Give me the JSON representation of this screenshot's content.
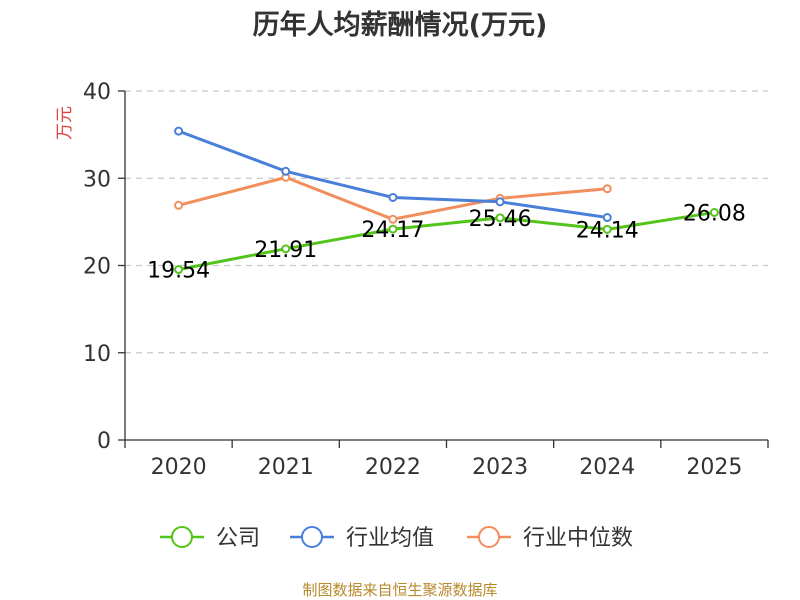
{
  "chart_data": {
    "type": "line",
    "title": "历年人均薪酬情况(万元)",
    "ylabel": "万元",
    "xlabel": "",
    "ylim": [
      0,
      40
    ],
    "yticks": [
      0,
      10,
      20,
      30,
      40
    ],
    "categories": [
      "2020",
      "2021",
      "2022",
      "2023",
      "2024",
      "2025"
    ],
    "grid": true,
    "legend_position": "bottom",
    "series": [
      {
        "name": "公司",
        "color": "#52c41a",
        "values": [
          19.54,
          21.91,
          24.17,
          25.46,
          24.14,
          26.08
        ],
        "labels": [
          "19.54",
          "21.91",
          "24.17",
          "25.46",
          "24.14",
          "26.08"
        ]
      },
      {
        "name": "行业均值",
        "color": "#4a7fd9",
        "values": [
          35.4,
          30.8,
          27.8,
          27.3,
          25.5,
          null
        ]
      },
      {
        "name": "行业中位数",
        "color": "#f28e5c",
        "values": [
          26.9,
          30.1,
          25.3,
          27.7,
          28.8,
          null
        ]
      }
    ],
    "source": "制图数据来自恒生聚源数据库"
  }
}
